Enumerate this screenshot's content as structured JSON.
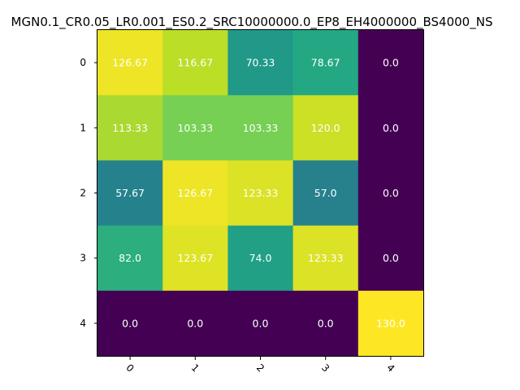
{
  "chart_data": {
    "type": "heatmap",
    "title": "MGN0.1_CR0.05_LR0.001_ES0.2_SRC10000000.0_EP8_EH4000000_BS4000_NS",
    "xlabel": "",
    "ylabel": "",
    "x_ticks": [
      "0",
      "1",
      "2",
      "3",
      "4"
    ],
    "y_ticks": [
      "0",
      "1",
      "2",
      "3",
      "4"
    ],
    "values": [
      [
        126.67,
        116.67,
        70.33,
        78.67,
        0.0
      ],
      [
        113.33,
        103.33,
        103.33,
        120.0,
        0.0
      ],
      [
        57.67,
        126.67,
        123.33,
        57.0,
        0.0
      ],
      [
        82.0,
        123.67,
        74.0,
        123.33,
        0.0
      ],
      [
        0.0,
        0.0,
        0.0,
        0.0,
        130.0
      ]
    ],
    "value_labels": [
      [
        "126.67",
        "116.67",
        "70.33",
        "78.67",
        "0.0"
      ],
      [
        "113.33",
        "103.33",
        "103.33",
        "120.0",
        "0.0"
      ],
      [
        "57.67",
        "126.67",
        "123.33",
        "57.0",
        "0.0"
      ],
      [
        "82.0",
        "123.67",
        "74.0",
        "123.33",
        "0.0"
      ],
      [
        "0.0",
        "0.0",
        "0.0",
        "0.0",
        "130.0"
      ]
    ],
    "vmin": 0.0,
    "vmax": 130.0,
    "colormap": "viridis",
    "annotation_color": "#ffffff",
    "x_tick_rotation": "45",
    "grid": false,
    "legend": "none"
  }
}
